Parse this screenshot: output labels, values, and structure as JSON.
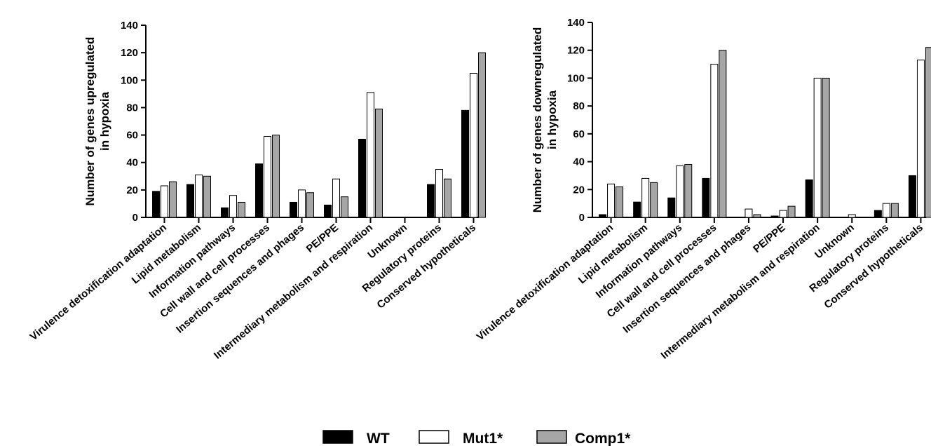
{
  "chart_data": [
    {
      "type": "bar",
      "ylabel": [
        "Number of genes upregulated",
        "in hypoxia"
      ],
      "ylim": [
        0,
        140
      ],
      "yticks": [
        0,
        20,
        40,
        60,
        80,
        100,
        120,
        140
      ],
      "categories": [
        "Virulence detoxification adaptation",
        "Lipid metabolism",
        "Information pathways",
        "Cell wall and cell processes",
        "Insertion sequences and phages",
        "PE/PPE",
        "Intermediary metabolism and respiration",
        "Unknown",
        "Regulatory proteins",
        "Conserved hypotheticals"
      ],
      "series": [
        {
          "name": "WT",
          "values": [
            19,
            24,
            7,
            39,
            11,
            9,
            57,
            0,
            24,
            78
          ]
        },
        {
          "name": "Mut1*",
          "values": [
            23,
            31,
            16,
            59,
            20,
            28,
            91,
            0,
            35,
            105
          ]
        },
        {
          "name": "Comp1*",
          "values": [
            26,
            30,
            11,
            60,
            18,
            15,
            79,
            0,
            28,
            120
          ]
        }
      ]
    },
    {
      "type": "bar",
      "ylabel": [
        "Number of genes downregulated",
        "in hypoxia"
      ],
      "ylim": [
        0,
        140
      ],
      "yticks": [
        0,
        20,
        40,
        60,
        80,
        100,
        120,
        140
      ],
      "categories": [
        "Virulence detoxification adaptation",
        "Lipid metabolism",
        "Information pathways",
        "Cell wall and cell processes",
        "Insertion sequences and phages",
        "PE/PPE",
        "Intermediary metabolism and respiration",
        "Unknown",
        "Regulatory proteins",
        "Conserved hypotheticals"
      ],
      "series": [
        {
          "name": "WT",
          "values": [
            2,
            11,
            14,
            28,
            0,
            1,
            27,
            0,
            5,
            30
          ]
        },
        {
          "name": "Mut1*",
          "values": [
            24,
            28,
            37,
            110,
            6,
            5,
            100,
            2,
            10,
            113
          ]
        },
        {
          "name": "Comp1*",
          "values": [
            22,
            25,
            38,
            120,
            2,
            8,
            100,
            0,
            10,
            122
          ]
        }
      ]
    }
  ],
  "legend": [
    {
      "label": "WT",
      "color": "#000000"
    },
    {
      "label": "Mut1*",
      "color": "#ffffff"
    },
    {
      "label": "Comp1*",
      "color": "#a6a6a6"
    }
  ],
  "series_colors": [
    "#000000",
    "#ffffff",
    "#a6a6a6"
  ]
}
